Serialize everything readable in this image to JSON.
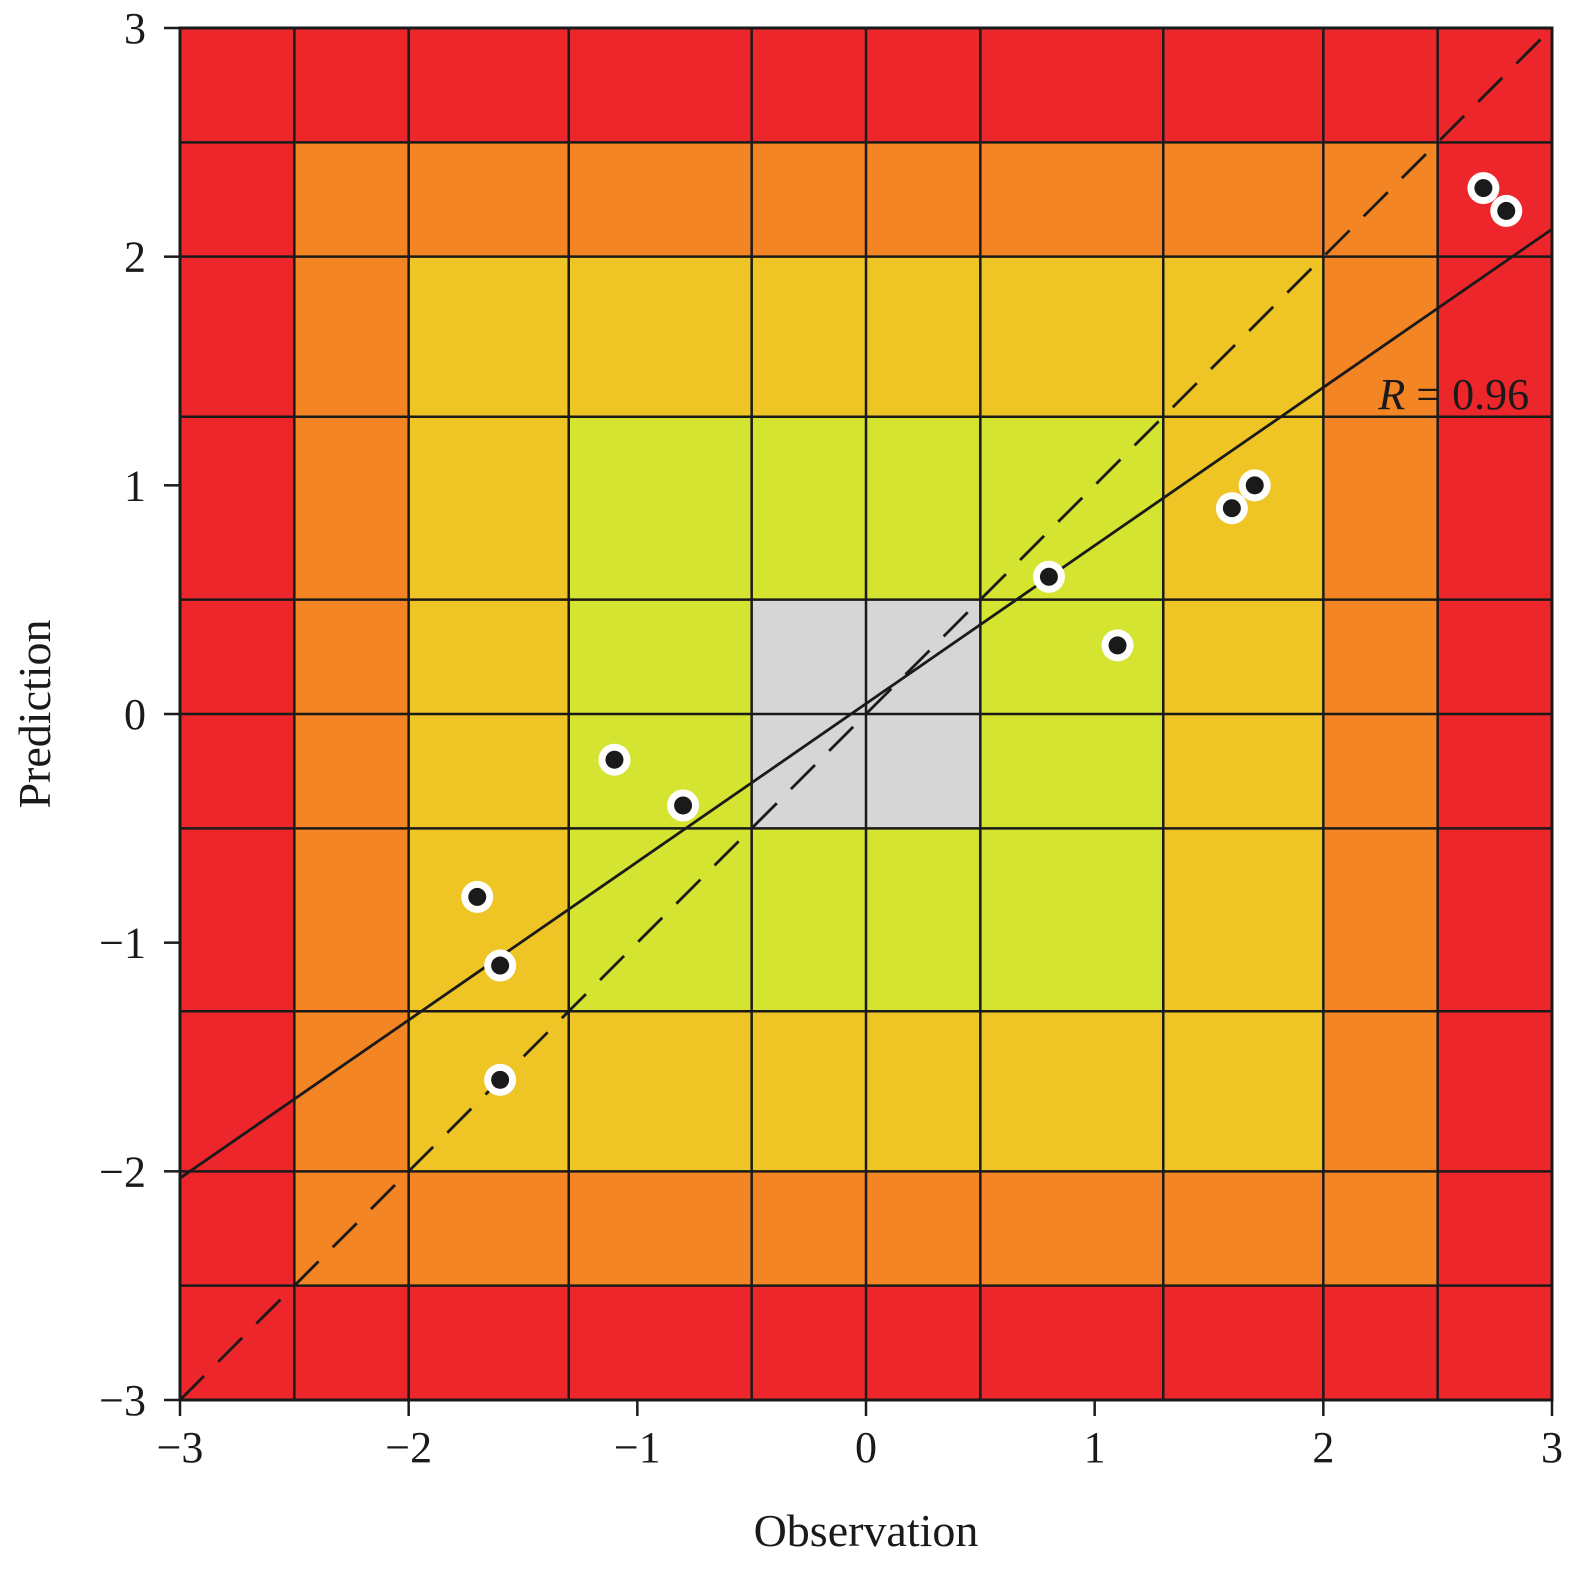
{
  "chart_data": {
    "type": "scatter",
    "title": "",
    "xlabel": "Observation",
    "ylabel": "Prediction",
    "xlim": [
      -3,
      3
    ],
    "ylim": [
      -3,
      3
    ],
    "xticks": [
      -3,
      -2,
      -1,
      0,
      1,
      2,
      3
    ],
    "yticks": [
      -3,
      -2,
      -1,
      0,
      1,
      2,
      3
    ],
    "xtick_labels": [
      "−3",
      "−2",
      "−1",
      "0",
      "1",
      "2",
      "3"
    ],
    "ytick_labels": [
      "−3",
      "−2",
      "−1",
      "0",
      "1",
      "2",
      "3"
    ],
    "points": [
      {
        "x": 2.7,
        "y": 2.3
      },
      {
        "x": 2.8,
        "y": 2.2
      },
      {
        "x": 1.7,
        "y": 1.0
      },
      {
        "x": 1.6,
        "y": 0.9
      },
      {
        "x": 0.8,
        "y": 0.6
      },
      {
        "x": 1.1,
        "y": 0.3
      },
      {
        "x": -1.1,
        "y": -0.2
      },
      {
        "x": -0.8,
        "y": -0.4
      },
      {
        "x": -1.7,
        "y": -0.8
      },
      {
        "x": -1.6,
        "y": -1.1
      },
      {
        "x": -1.6,
        "y": -1.6
      }
    ],
    "identity_line": {
      "style": "dashed",
      "from": [
        -3,
        -3
      ],
      "to": [
        3,
        3
      ]
    },
    "regression_line": {
      "style": "solid",
      "from": [
        -3,
        -2.03
      ],
      "to": [
        3,
        2.12
      ]
    },
    "annotation": {
      "italic": "R",
      "rest": " = 0.96",
      "x": 2.9,
      "y": 1.4
    },
    "background_zones": [
      {
        "level": 0,
        "color": "#d6d6d6",
        "x": [
          -0.5,
          0.5
        ],
        "y": [
          -0.5,
          0.5
        ]
      },
      {
        "level": 1,
        "color": "#d5e331",
        "x": [
          -1.3,
          1.3
        ],
        "y": [
          -1.3,
          1.3
        ]
      },
      {
        "level": 2,
        "color": "#efc526",
        "x": [
          -2.0,
          2.0
        ],
        "y": [
          -2.0,
          2.0
        ]
      },
      {
        "level": 3,
        "color": "#f38524",
        "x": [
          -2.5,
          2.5
        ],
        "y": [
          -2.5,
          2.5
        ]
      },
      {
        "level": 4,
        "color": "#ec262a",
        "x": [
          -3,
          3
        ],
        "y": [
          -3,
          3
        ]
      }
    ],
    "cell_boundaries": [
      -2.5,
      -2.0,
      -1.3,
      -0.5,
      0,
      0.5,
      1.3,
      2.0,
      2.5
    ],
    "grid": true,
    "legend": "none"
  }
}
